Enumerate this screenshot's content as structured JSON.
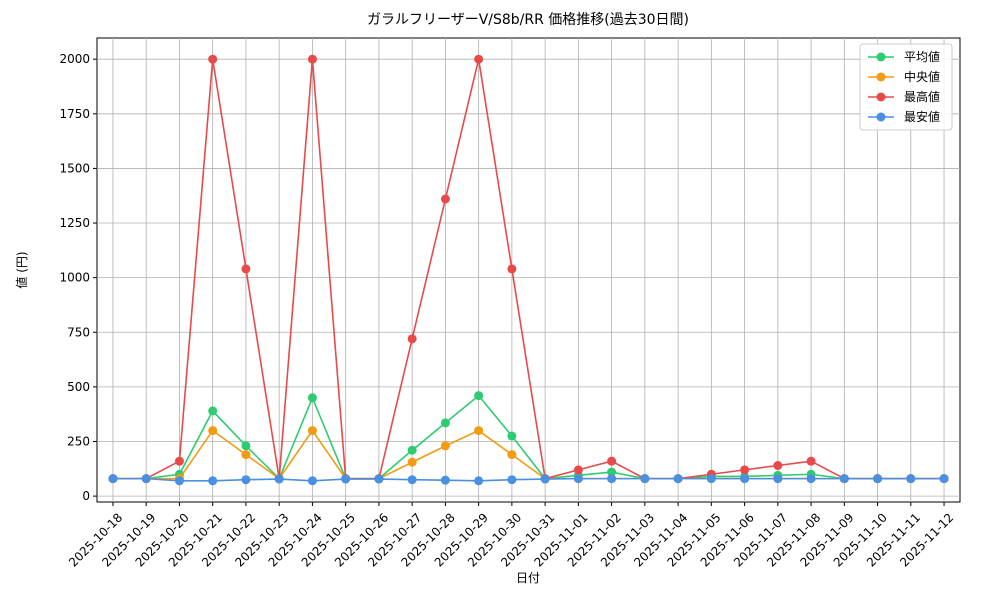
{
  "chart_data": {
    "type": "line",
    "title": "ガラルフリーザーV/S8b/RR 価格推移(過去30日間)",
    "x_label": "日付",
    "y_label": "値 (円)",
    "categories": [
      "2025-10-18",
      "2025-10-19",
      "2025-10-20",
      "2025-10-21",
      "2025-10-22",
      "2025-10-23",
      "2025-10-24",
      "2025-10-25",
      "2025-10-26",
      "2025-10-27",
      "2025-10-28",
      "2025-10-29",
      "2025-10-30",
      "2025-10-31",
      "2025-11-01",
      "2025-11-02",
      "2025-11-03",
      "2025-11-04",
      "2025-11-05",
      "2025-11-06",
      "2025-11-07",
      "2025-11-08",
      "2025-11-09",
      "2025-11-10",
      "2025-11-11",
      "2025-11-12"
    ],
    "series": [
      {
        "name": "平均値",
        "color": "#2ecc71",
        "values": [
          80,
          80,
          100,
          390,
          230,
          80,
          450,
          80,
          80,
          210,
          335,
          460,
          275,
          80,
          95,
          110,
          80,
          80,
          90,
          90,
          95,
          100,
          80,
          80,
          80,
          80
        ]
      },
      {
        "name": "中央値",
        "color": "#f39c12",
        "values": [
          80,
          80,
          80,
          300,
          190,
          80,
          300,
          80,
          80,
          155,
          230,
          300,
          190,
          80,
          80,
          80,
          80,
          80,
          80,
          80,
          80,
          80,
          80,
          80,
          80,
          80
        ]
      },
      {
        "name": "最高値",
        "color": "#e84a4a",
        "values": [
          80,
          80,
          160,
          2000,
          1040,
          80,
          2000,
          80,
          80,
          720,
          1360,
          2000,
          1040,
          80,
          120,
          160,
          80,
          80,
          100,
          120,
          140,
          160,
          80,
          80,
          80,
          80
        ]
      },
      {
        "name": "最安値",
        "color": "#4a90e2",
        "values": [
          80,
          80,
          70,
          70,
          75,
          78,
          70,
          78,
          78,
          75,
          73,
          70,
          75,
          78,
          80,
          80,
          80,
          80,
          80,
          80,
          80,
          80,
          80,
          80,
          80,
          80
        ]
      }
    ],
    "ylim": [
      -27,
      2097
    ],
    "yticks": [
      0,
      250,
      500,
      750,
      1000,
      1250,
      1500,
      1750,
      2000
    ],
    "grid": true,
    "legend": "upper-right"
  }
}
